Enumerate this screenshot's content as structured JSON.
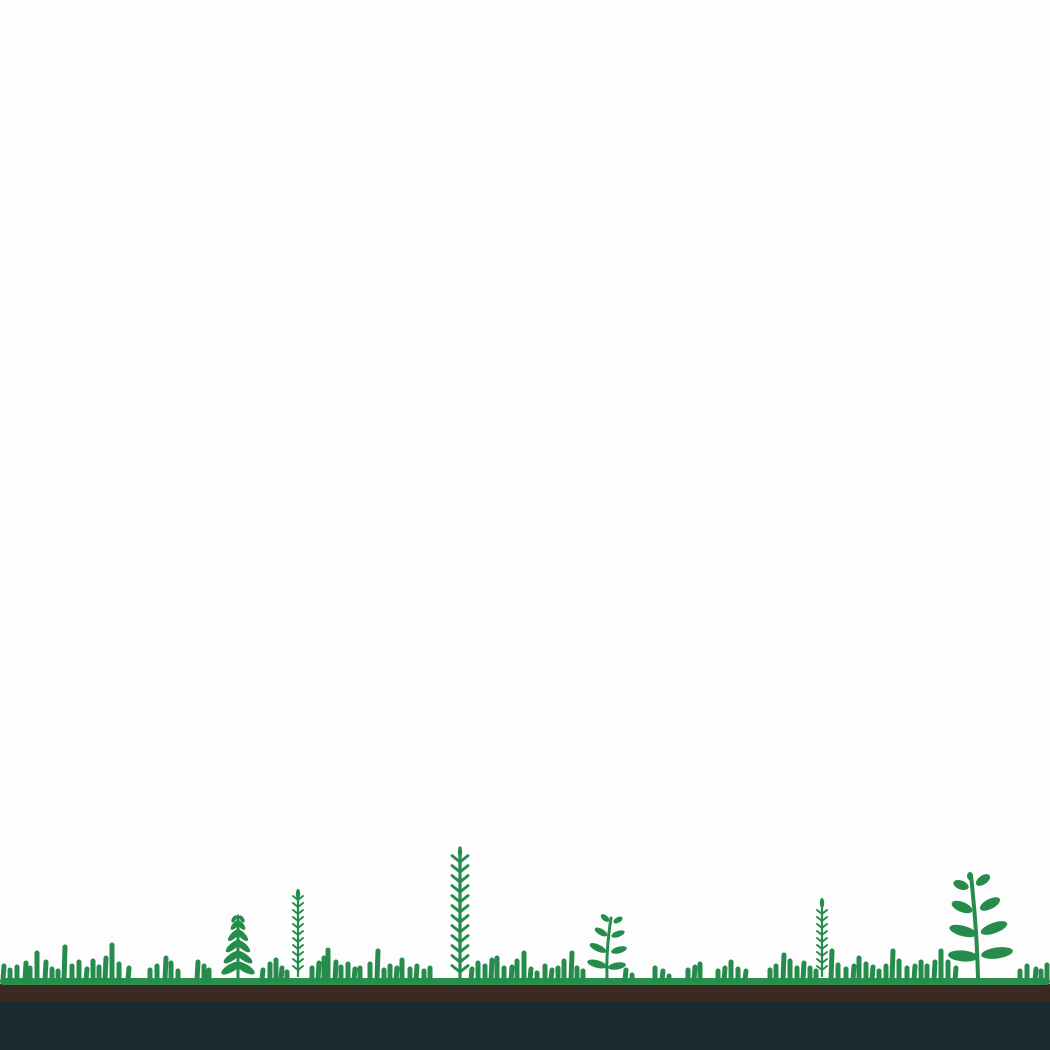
{
  "scene": {
    "type": "ground-with-plants",
    "colors": {
      "sky": "#fdfdfd",
      "plant": "#258c4c",
      "plant_dark": "#1f7a43",
      "grass_line": "#2a8f4d",
      "soil": "#3b2a22",
      "bedrock": "#1b2b30"
    },
    "layers": [
      "sky",
      "plants",
      "grass-line",
      "soil",
      "bedrock"
    ],
    "plant_kinds": [
      "grass-blade",
      "fern",
      "tall-stalk",
      "slender-fern",
      "sprout",
      "broadleaf-plant"
    ]
  }
}
